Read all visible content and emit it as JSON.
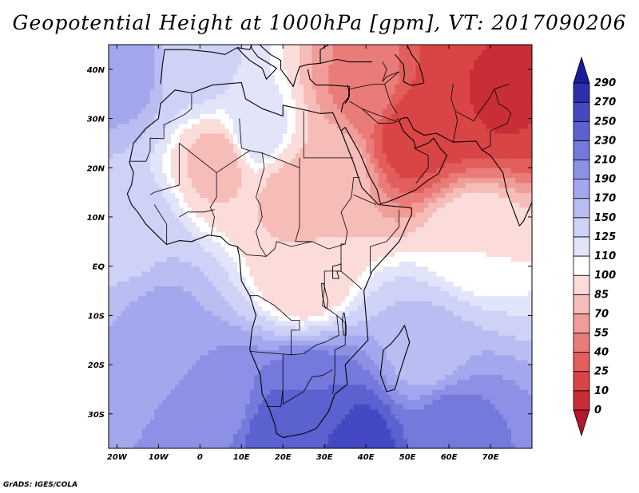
{
  "title": "Geopotential Height at 1000hPa [gpm], VT: 2017090206",
  "credit": "GrADS: IGES/COLA",
  "map": {
    "lon_range": [
      -22,
      80
    ],
    "lat_range": [
      -37,
      45
    ],
    "lon_ticks": [
      {
        "value": -20,
        "label": "20W"
      },
      {
        "value": -10,
        "label": "10W"
      },
      {
        "value": 0,
        "label": "0"
      },
      {
        "value": 10,
        "label": "10E"
      },
      {
        "value": 20,
        "label": "20E"
      },
      {
        "value": 30,
        "label": "30E"
      },
      {
        "value": 40,
        "label": "40E"
      },
      {
        "value": 50,
        "label": "50E"
      },
      {
        "value": 60,
        "label": "60E"
      },
      {
        "value": 70,
        "label": "70E"
      }
    ],
    "lat_ticks": [
      {
        "value": 40,
        "label": "40N"
      },
      {
        "value": 30,
        "label": "30N"
      },
      {
        "value": 20,
        "label": "20N"
      },
      {
        "value": 10,
        "label": "10N"
      },
      {
        "value": 0,
        "label": "EQ"
      },
      {
        "value": -10,
        "label": "10S"
      },
      {
        "value": -20,
        "label": "20S"
      },
      {
        "value": -30,
        "label": "30S"
      }
    ]
  },
  "colorbar": {
    "levels": [
      "0",
      "10",
      "25",
      "40",
      "55",
      "70",
      "85",
      "100",
      "110",
      "125",
      "150",
      "170",
      "190",
      "210",
      "230",
      "250",
      "270",
      "290"
    ],
    "colors": [
      "#b2182b",
      "#c92e36",
      "#d94545",
      "#e25e5b",
      "#e97c78",
      "#f09c98",
      "#f6bcb8",
      "#fbdcda",
      "#ffffff",
      "#e2e4fa",
      "#cfd2f7",
      "#b9bdf2",
      "#a3a8ee",
      "#8c91e6",
      "#7479dc",
      "#5c61d0",
      "#4448c2",
      "#2d2faf",
      "#1a1c98"
    ]
  },
  "field_centers": [
    {
      "lon": 50,
      "lat": 27,
      "value": 15
    },
    {
      "lon": 62,
      "lat": 33,
      "value": 10
    },
    {
      "lon": 73,
      "lat": 35,
      "value": 8
    },
    {
      "lon": 40,
      "lat": 35,
      "value": 50
    },
    {
      "lon": 5,
      "lat": 22,
      "value": 78
    },
    {
      "lon": 22,
      "lat": 15,
      "value": 80
    },
    {
      "lon": 32,
      "lat": 20,
      "value": 82
    },
    {
      "lon": 25,
      "lat": -2,
      "value": 85
    },
    {
      "lon": 13,
      "lat": 27,
      "value": 120
    },
    {
      "lon": 0,
      "lat": 40,
      "value": 130
    },
    {
      "lon": 66,
      "lat": 5,
      "value": 100
    },
    {
      "lon": -18,
      "lat": 5,
      "value": 145
    },
    {
      "lon": -10,
      "lat": -12,
      "value": 175
    },
    {
      "lon": 5,
      "lat": -28,
      "value": 200
    },
    {
      "lon": 18,
      "lat": -34,
      "value": 240
    },
    {
      "lon": 27,
      "lat": -27,
      "value": 230
    },
    {
      "lon": 38,
      "lat": -36,
      "value": 260
    },
    {
      "lon": 60,
      "lat": -32,
      "value": 220
    },
    {
      "lon": 55,
      "lat": -18,
      "value": 160
    },
    {
      "lon": -18,
      "lat": 40,
      "value": 180
    }
  ]
}
